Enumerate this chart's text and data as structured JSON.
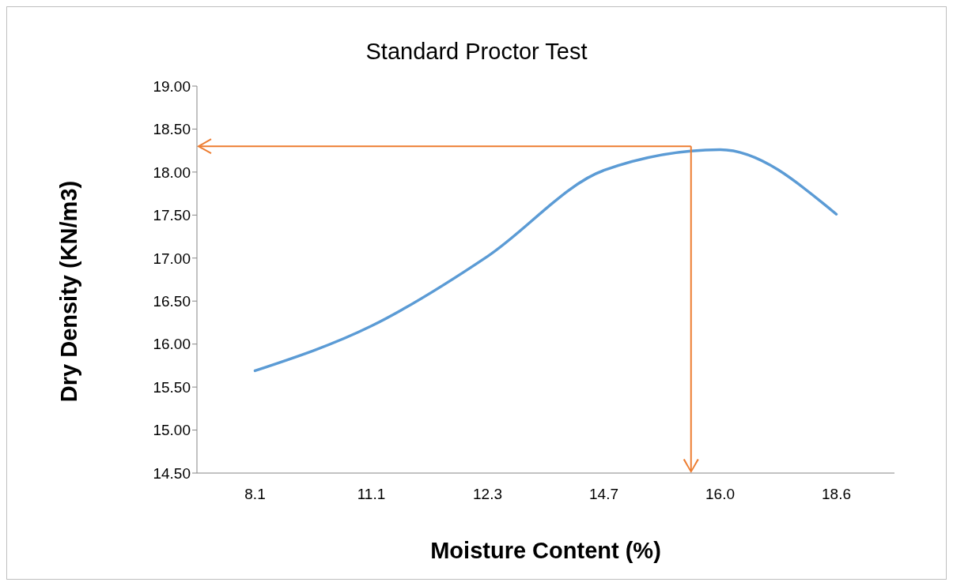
{
  "chart_data": {
    "type": "line",
    "title": "Standard Proctor Test",
    "xlabel": "Moisture Content (%)",
    "ylabel": "Dry Density (KN/m3)",
    "categories": [
      "8.1",
      "11.1",
      "12.3",
      "14.7",
      "16.0",
      "18.6"
    ],
    "series": [
      {
        "color": "#5b9bd5",
        "values": [
          15.69,
          16.21,
          17.02,
          18.02,
          18.26,
          17.51
        ]
      }
    ],
    "ylim": [
      14.5,
      19.0
    ],
    "yticks": [
      {
        "value": 14.5,
        "label": "14.50"
      },
      {
        "value": 15,
        "label": "15.00"
      },
      {
        "value": 15.5,
        "label": "15.50"
      },
      {
        "value": 16,
        "label": "16.00"
      },
      {
        "value": 16.5,
        "label": "16.50"
      },
      {
        "value": 17,
        "label": "17.00"
      },
      {
        "value": 17.5,
        "label": "17.50"
      },
      {
        "value": 18,
        "label": "18.00"
      },
      {
        "value": 18.5,
        "label": "18.50"
      },
      {
        "value": 19,
        "label": "19.00"
      }
    ],
    "ref_lines": [
      {
        "axis": "y",
        "value": 18.3,
        "color": "#ed7d31"
      }
    ],
    "grid": false,
    "legend": false,
    "marker": "none",
    "line_style": "solid"
  }
}
